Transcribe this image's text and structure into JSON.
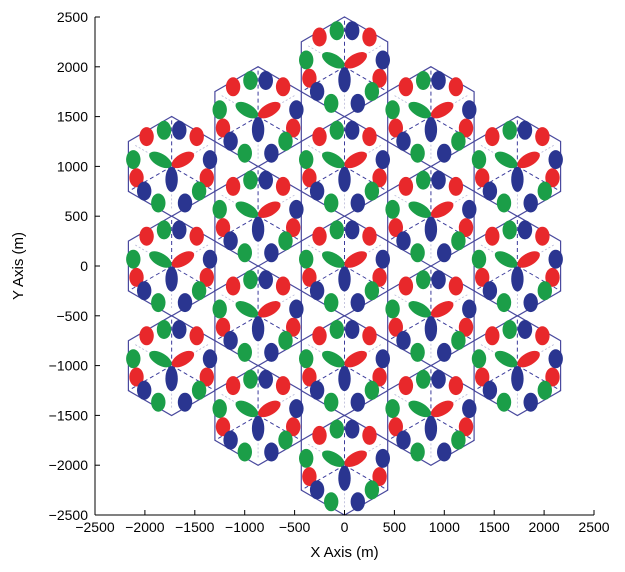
{
  "chart_data": {
    "type": "scatter",
    "subtype": "hexagonal-cell-layout",
    "title": "",
    "xlabel": "X Axis (m)",
    "ylabel": "Y Axis (m)",
    "xlim": [
      -2500,
      2500
    ],
    "ylim": [
      -2500,
      2500
    ],
    "xticks": [
      -2500,
      -2000,
      -1500,
      -1000,
      -500,
      0,
      500,
      1000,
      1500,
      2000,
      2500
    ],
    "yticks": [
      -2500,
      -2000,
      -1500,
      -1000,
      -500,
      0,
      500,
      1000,
      1500,
      2000,
      2500
    ],
    "xtick_labels": [
      "−2500",
      "−2000",
      "−1500",
      "−1000",
      "−500",
      "0",
      "500",
      "1000",
      "1500",
      "2000",
      "2500"
    ],
    "ytick_labels": [
      "−2500",
      "−2000",
      "−1500",
      "−1000",
      "−500",
      "0",
      "500",
      "1000",
      "1500",
      "2000",
      "2500"
    ],
    "grid": false,
    "cell_radius": 500,
    "cells": [
      {
        "x": 0,
        "y": 0
      },
      {
        "x": 0,
        "y": 1000
      },
      {
        "x": 0,
        "y": -1000
      },
      {
        "x": 0,
        "y": 2000
      },
      {
        "x": 0,
        "y": -2000
      },
      {
        "x": 866,
        "y": 500
      },
      {
        "x": 866,
        "y": -500
      },
      {
        "x": 866,
        "y": 1500
      },
      {
        "x": 866,
        "y": -1500
      },
      {
        "x": -866,
        "y": 500
      },
      {
        "x": -866,
        "y": -500
      },
      {
        "x": -866,
        "y": 1500
      },
      {
        "x": -866,
        "y": -1500
      },
      {
        "x": 1732,
        "y": 0
      },
      {
        "x": 1732,
        "y": 1000
      },
      {
        "x": 1732,
        "y": -1000
      },
      {
        "x": -1732,
        "y": 0
      },
      {
        "x": -1732,
        "y": 1000
      },
      {
        "x": -1732,
        "y": -1000
      }
    ],
    "sector_colors": {
      "red": "#e8282b",
      "blue": "#2a3590",
      "green": "#1b9e48"
    },
    "cell_edge_color": "#4a4a9e",
    "sector_line_color": "#3c3c9c"
  }
}
